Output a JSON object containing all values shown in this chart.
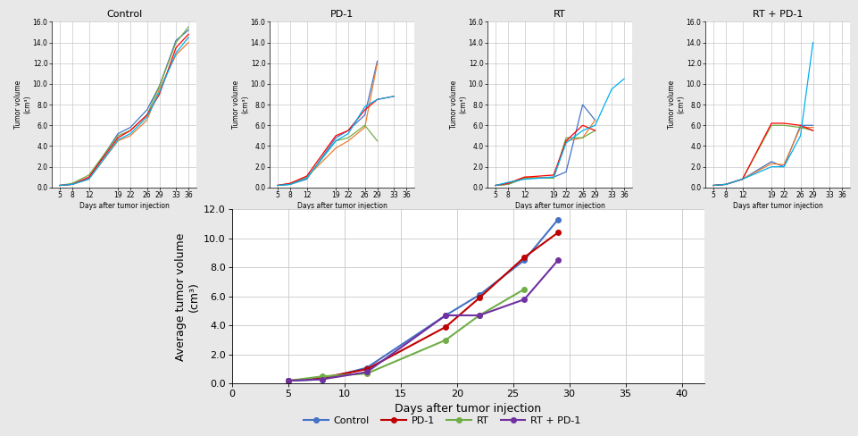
{
  "days": [
    5,
    8,
    12,
    19,
    22,
    26,
    29,
    33,
    36
  ],
  "days_avg": [
    5,
    8,
    12,
    19,
    22,
    26,
    29
  ],
  "control": {
    "title": "Control",
    "lines": [
      [
        0.2,
        0.3,
        0.9,
        5.2,
        5.8,
        7.5,
        9.8,
        14.2,
        15.2
      ],
      [
        0.2,
        0.3,
        0.8,
        4.5,
        5.0,
        6.5,
        9.5,
        12.8,
        14.0
      ],
      [
        0.2,
        0.4,
        1.2,
        5.0,
        5.5,
        7.0,
        9.8,
        14.0,
        15.5
      ],
      [
        0.2,
        0.3,
        1.0,
        4.8,
        5.5,
        7.0,
        9.0,
        13.5,
        14.8
      ],
      [
        0.2,
        0.3,
        0.8,
        4.6,
        5.2,
        6.8,
        9.2,
        13.0,
        14.5
      ]
    ],
    "colors": [
      "#4472C4",
      "#ED7D31",
      "#70AD47",
      "#FF0000",
      "#00B0F0"
    ]
  },
  "pd1": {
    "title": "PD-1",
    "lines": [
      [
        0.2,
        0.3,
        0.8,
        4.8,
        5.5,
        7.0,
        12.2,
        null,
        null
      ],
      [
        0.2,
        0.4,
        1.0,
        3.8,
        4.5,
        5.8,
        12.0,
        null,
        null
      ],
      [
        0.2,
        0.3,
        0.9,
        4.5,
        4.8,
        6.0,
        4.5,
        null,
        null
      ],
      [
        0.2,
        0.4,
        1.1,
        5.0,
        5.5,
        7.5,
        8.5,
        8.8,
        null
      ],
      [
        0.2,
        0.3,
        0.9,
        4.5,
        5.2,
        7.8,
        8.5,
        8.8,
        null
      ]
    ],
    "colors": [
      "#4472C4",
      "#ED7D31",
      "#70AD47",
      "#FF0000",
      "#00B0F0"
    ]
  },
  "rt": {
    "title": "RT",
    "lines": [
      [
        0.2,
        0.3,
        0.9,
        1.0,
        1.5,
        8.0,
        6.5,
        null,
        null
      ],
      [
        0.2,
        0.4,
        1.0,
        0.9,
        4.5,
        4.8,
        6.5,
        null,
        null
      ],
      [
        0.2,
        0.3,
        0.9,
        0.9,
        4.8,
        4.8,
        5.5,
        null,
        null
      ],
      [
        0.2,
        0.4,
        1.0,
        1.2,
        4.5,
        6.0,
        5.5,
        null,
        null
      ],
      [
        0.2,
        0.5,
        0.8,
        1.0,
        4.3,
        5.5,
        6.0,
        9.5,
        10.5
      ]
    ],
    "colors": [
      "#4472C4",
      "#ED7D31",
      "#70AD47",
      "#FF0000",
      "#00B0F0"
    ]
  },
  "rt_pd1": {
    "title": "RT + PD-1",
    "lines": [
      [
        0.2,
        0.3,
        0.8,
        2.5,
        2.0,
        6.0,
        6.0,
        null,
        null
      ],
      [
        0.2,
        0.3,
        0.8,
        2.3,
        2.2,
        5.8,
        5.8,
        null,
        null
      ],
      [
        0.2,
        0.3,
        0.8,
        6.0,
        6.0,
        5.8,
        5.5,
        null,
        null
      ],
      [
        0.2,
        0.3,
        0.8,
        6.2,
        6.2,
        6.0,
        5.5,
        null,
        null
      ],
      [
        0.2,
        0.3,
        0.8,
        2.0,
        2.0,
        5.0,
        14.0,
        null,
        null
      ]
    ],
    "colors": [
      "#4472C4",
      "#ED7D31",
      "#70AD47",
      "#FF0000",
      "#00B0F0"
    ]
  },
  "avg": {
    "Control": [
      0.2,
      0.3,
      1.1,
      4.7,
      6.1,
      8.5,
      11.3
    ],
    "PD-1": [
      0.2,
      0.4,
      1.0,
      3.9,
      5.9,
      8.7,
      10.4
    ],
    "RT": [
      0.2,
      0.5,
      0.7,
      3.0,
      4.7,
      6.5,
      null
    ],
    "RT + PD-1": [
      0.2,
      0.3,
      0.8,
      4.7,
      4.7,
      5.8,
      8.5
    ]
  },
  "avg_colors": {
    "Control": "#4472C4",
    "PD-1": "#C00000",
    "RT": "#70AD47",
    "RT + PD-1": "#7030A0"
  },
  "ylim_small": [
    0,
    16.0
  ],
  "yticks_small": [
    0.0,
    2.0,
    4.0,
    6.0,
    8.0,
    10.0,
    12.0,
    14.0,
    16.0
  ],
  "xticks_small": [
    5,
    8,
    12,
    19,
    22,
    26,
    29,
    33,
    36
  ],
  "ylim_avg": [
    0,
    12.0
  ],
  "yticks_avg": [
    0.0,
    2.0,
    4.0,
    6.0,
    8.0,
    10.0,
    12.0
  ],
  "xticks_avg": [
    0,
    5,
    10,
    15,
    20,
    25,
    30,
    35,
    40
  ],
  "xlabel_small": "Days after tumor injection",
  "ylabel_small": "Tumor volume\n(cm³)",
  "xlabel_avg": "Days after tumor injection",
  "ylabel_avg": "Average tumor volume\n(cm³)",
  "bg_color": "#E8E8E8",
  "plot_bg": "#FFFFFF",
  "grid_color": "#C8C8C8"
}
